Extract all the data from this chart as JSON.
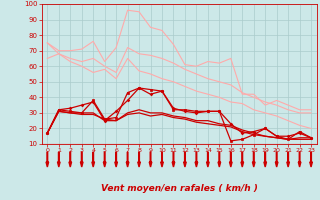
{
  "background_color": "#cce8e8",
  "grid_color": "#aacccc",
  "xlabel": "Vent moyen/en rafales ( km/h )",
  "xlabel_color": "#cc0000",
  "xlabel_fontsize": 6.5,
  "tick_color": "#cc0000",
  "ylim": [
    10,
    100
  ],
  "xlim": [
    -0.5,
    23.5
  ],
  "yticks": [
    10,
    20,
    30,
    40,
    50,
    60,
    70,
    80,
    90,
    100
  ],
  "xticks": [
    0,
    1,
    2,
    3,
    4,
    5,
    6,
    7,
    8,
    9,
    10,
    11,
    12,
    13,
    14,
    15,
    16,
    17,
    18,
    19,
    20,
    21,
    22,
    23
  ],
  "series": [
    {
      "x": [
        0,
        1,
        2,
        3,
        4,
        5,
        6,
        7,
        8,
        9,
        10,
        11,
        12,
        13,
        14,
        15,
        16,
        17,
        18,
        19,
        20,
        21,
        22,
        23
      ],
      "y": [
        75,
        70,
        70,
        71,
        76,
        63,
        72,
        96,
        95,
        85,
        83,
        74,
        61,
        60,
        63,
        62,
        65,
        42,
        42,
        35,
        38,
        35,
        32,
        32
      ],
      "color": "#ffaaaa",
      "linewidth": 0.8,
      "marker": null
    },
    {
      "x": [
        0,
        1,
        2,
        3,
        4,
        5,
        6,
        7,
        8,
        9,
        10,
        11,
        12,
        13,
        14,
        15,
        16,
        17,
        18,
        19,
        20,
        21,
        22,
        23
      ],
      "y": [
        65,
        68,
        65,
        63,
        65,
        60,
        56,
        72,
        68,
        67,
        65,
        62,
        58,
        55,
        52,
        50,
        48,
        43,
        40,
        37,
        35,
        32,
        30,
        30
      ],
      "color": "#ffaaaa",
      "linewidth": 0.8,
      "marker": null
    },
    {
      "x": [
        0,
        1,
        2,
        3,
        4,
        5,
        6,
        7,
        8,
        9,
        10,
        11,
        12,
        13,
        14,
        15,
        16,
        17,
        18,
        19,
        20,
        21,
        22,
        23
      ],
      "y": [
        75,
        68,
        63,
        60,
        56,
        58,
        52,
        65,
        57,
        55,
        52,
        50,
        47,
        44,
        42,
        40,
        37,
        36,
        32,
        30,
        28,
        25,
        22,
        20
      ],
      "color": "#ffaaaa",
      "linewidth": 0.8,
      "marker": null
    },
    {
      "x": [
        0,
        1,
        2,
        3,
        4,
        5,
        6,
        7,
        8,
        9,
        10,
        11,
        12,
        13,
        14,
        15,
        16,
        17,
        18,
        19,
        20,
        21,
        22,
        23
      ],
      "y": [
        17,
        32,
        31,
        30,
        38,
        26,
        27,
        43,
        46,
        45,
        44,
        32,
        32,
        31,
        31,
        31,
        12,
        13,
        16,
        20,
        15,
        13,
        18,
        14
      ],
      "color": "#cc0000",
      "linewidth": 0.9,
      "marker": "s",
      "markersize": 1.8
    },
    {
      "x": [
        0,
        1,
        2,
        3,
        4,
        5,
        6,
        7,
        8,
        9,
        10,
        11,
        12,
        13,
        14,
        15,
        16,
        17,
        18,
        19,
        20,
        21,
        22,
        23
      ],
      "y": [
        17,
        32,
        33,
        35,
        37,
        25,
        31,
        38,
        46,
        42,
        44,
        33,
        31,
        30,
        31,
        31,
        23,
        17,
        18,
        20,
        15,
        15,
        17,
        14
      ],
      "color": "#cc0000",
      "linewidth": 0.9,
      "marker": "P",
      "markersize": 1.8
    },
    {
      "x": [
        0,
        1,
        2,
        3,
        4,
        5,
        6,
        7,
        8,
        9,
        10,
        11,
        12,
        13,
        14,
        15,
        16,
        17,
        18,
        19,
        20,
        21,
        22,
        23
      ],
      "y": [
        17,
        31,
        30,
        30,
        30,
        25,
        25,
        30,
        32,
        30,
        30,
        28,
        27,
        25,
        25,
        23,
        22,
        19,
        17,
        15,
        14,
        13,
        14,
        14
      ],
      "color": "#cc0000",
      "linewidth": 0.9,
      "marker": null
    },
    {
      "x": [
        0,
        1,
        2,
        3,
        4,
        5,
        6,
        7,
        8,
        9,
        10,
        11,
        12,
        13,
        14,
        15,
        16,
        17,
        18,
        19,
        20,
        21,
        22,
        23
      ],
      "y": [
        17,
        31,
        30,
        29,
        29,
        26,
        25,
        29,
        30,
        28,
        29,
        27,
        26,
        24,
        23,
        22,
        21,
        18,
        16,
        15,
        14,
        13,
        13,
        13
      ],
      "color": "#cc0000",
      "linewidth": 0.9,
      "marker": null
    }
  ],
  "arrow_color": "#cc0000"
}
